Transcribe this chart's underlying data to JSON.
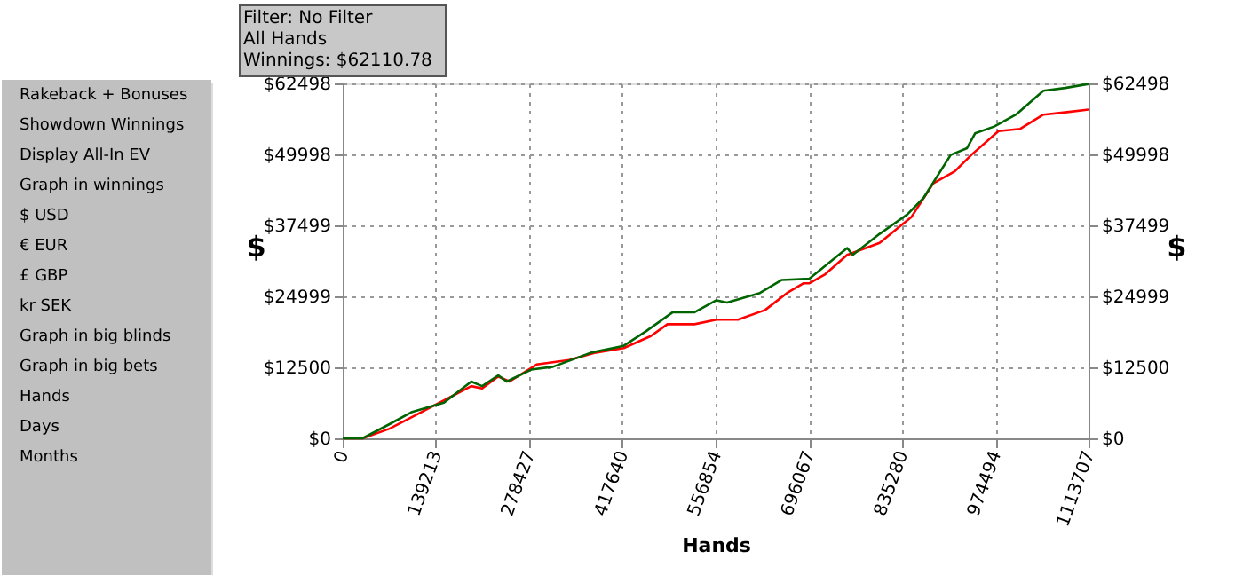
{
  "chart_data": {
    "type": "line",
    "xlabel": "Hands",
    "ylabel": "$",
    "y2label": "$",
    "annotations": [
      "Filter: No Filter",
      "All Hands",
      "Winnings: $62110.78",
      "Rakeback + Bonuses",
      "Showdown Winnings",
      "Display All-In EV",
      "Graph in winnings",
      "$ USD",
      "€ EUR",
      "£ GBP",
      "kr SEK",
      "Graph in big blinds",
      "Graph in big bets",
      "Hands",
      "Days",
      "Months"
    ],
    "xlim": [
      0,
      1113707
    ],
    "xticks": [
      0,
      139213,
      278427,
      417640,
      556854,
      696067,
      835280,
      974494,
      1113707
    ],
    "ylim": [
      0,
      62498
    ],
    "yticks": [
      {
        "value": 0,
        "label": "$0"
      },
      {
        "value": 12500,
        "label": "$12500"
      },
      {
        "value": 24999,
        "label": "$24999"
      },
      {
        "value": 37499,
        "label": "$37499"
      },
      {
        "value": 49998,
        "label": "$49998"
      },
      {
        "value": 62498,
        "label": "$62498"
      }
    ],
    "y2lim": [
      0,
      62498
    ],
    "y2ticks": [
      {
        "value": 0,
        "label": "$0"
      },
      {
        "value": 12500,
        "label": "$12500"
      },
      {
        "value": 24999,
        "label": "$24999"
      },
      {
        "value": 37499,
        "label": "$37499"
      },
      {
        "value": 49998,
        "label": "$49998"
      },
      {
        "value": 62498,
        "label": "$62498"
      }
    ],
    "grid": true,
    "legend": false,
    "line_style": "solid",
    "series": [
      {
        "color": "#ff0000",
        "x": [
          0,
          29600,
          69900,
          102500,
          151200,
          192000,
          208200,
          232300,
          249000,
          289600,
          338000,
          378000,
          419700,
          460000,
          484900,
          525400,
          558000,
          590400,
          630800,
          663500,
          687800,
          696500,
          720500,
          753400,
          801800,
          849400,
          881900,
          914000,
          938700,
          979300,
          1011800,
          1046300,
          1078800,
          1113707
        ],
        "values": [
          0,
          0,
          1700,
          3700,
          6700,
          9200,
          8800,
          10900,
          10000,
          13000,
          13800,
          15100,
          15900,
          18000,
          20100,
          20100,
          20900,
          20900,
          22600,
          25600,
          27300,
          27300,
          28900,
          32300,
          34400,
          39000,
          44900,
          47000,
          49900,
          54100,
          54500,
          57000,
          57400,
          57900
        ]
      },
      {
        "color": "#006400",
        "x": [
          0,
          29600,
          69900,
          102500,
          151200,
          192000,
          208200,
          232300,
          244800,
          281500,
          314000,
          370900,
          419700,
          452300,
          492800,
          525400,
          558000,
          574000,
          623000,
          655700,
          696500,
          753400,
          761600,
          801800,
          842800,
          867200,
          907900,
          932300,
          944300,
          972700,
          1005400,
          1046300,
          1078800,
          1113707
        ],
        "values": [
          0,
          0,
          2500,
          4600,
          6300,
          10000,
          9200,
          11100,
          10000,
          12100,
          12600,
          15100,
          16300,
          18800,
          22200,
          22200,
          24300,
          23900,
          25600,
          27900,
          28100,
          33500,
          32300,
          36000,
          39400,
          42300,
          49900,
          51100,
          53700,
          54900,
          57000,
          61200,
          61700,
          62400
        ]
      }
    ]
  }
}
